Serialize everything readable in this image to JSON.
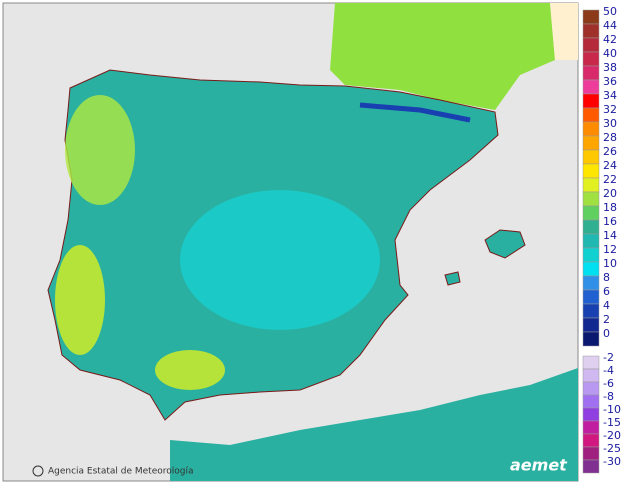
{
  "legend": {
    "items": [
      {
        "label": "50",
        "color": "#8b3a1a"
      },
      {
        "label": "44",
        "color": "#a0302a"
      },
      {
        "label": "42",
        "color": "#b52a3a"
      },
      {
        "label": "40",
        "color": "#c8284a"
      },
      {
        "label": "38",
        "color": "#d82a6a"
      },
      {
        "label": "36",
        "color": "#ee3c9a"
      },
      {
        "label": "34",
        "color": "#ff0000"
      },
      {
        "label": "32",
        "color": "#ff5a00"
      },
      {
        "label": "30",
        "color": "#ff8c00"
      },
      {
        "label": "28",
        "color": "#ffa500"
      },
      {
        "label": "26",
        "color": "#ffc800"
      },
      {
        "label": "24",
        "color": "#ffe600"
      },
      {
        "label": "22",
        "color": "#e0f020"
      },
      {
        "label": "20",
        "color": "#a0e040"
      },
      {
        "label": "18",
        "color": "#60d060"
      },
      {
        "label": "16",
        "color": "#30b090"
      },
      {
        "label": "14",
        "color": "#20b8b0"
      },
      {
        "label": "12",
        "color": "#10d0d0"
      },
      {
        "label": "10",
        "color": "#00e0f0"
      },
      {
        "label": "8",
        "color": "#3090e8"
      },
      {
        "label": "6",
        "color": "#2060d0"
      },
      {
        "label": "4",
        "color": "#1840b0"
      },
      {
        "label": "2",
        "color": "#102890"
      },
      {
        "label": "0",
        "color": "#0a1870"
      }
    ],
    "negative_items": [
      {
        "label": "-2",
        "color": "#e0d0f0"
      },
      {
        "label": "-4",
        "color": "#d0b8f0"
      },
      {
        "label": "-6",
        "color": "#b898f0"
      },
      {
        "label": "-8",
        "color": "#a070f0"
      },
      {
        "label": "-10",
        "color": "#9040e0"
      },
      {
        "label": "-15",
        "color": "#c020a0"
      },
      {
        "label": "-20",
        "color": "#d01880"
      },
      {
        "label": "-25",
        "color": "#a02080"
      },
      {
        "label": "-30",
        "color": "#803090"
      }
    ]
  },
  "credit": "Agencia Estatal de Meteorología",
  "logo": "aemet"
}
